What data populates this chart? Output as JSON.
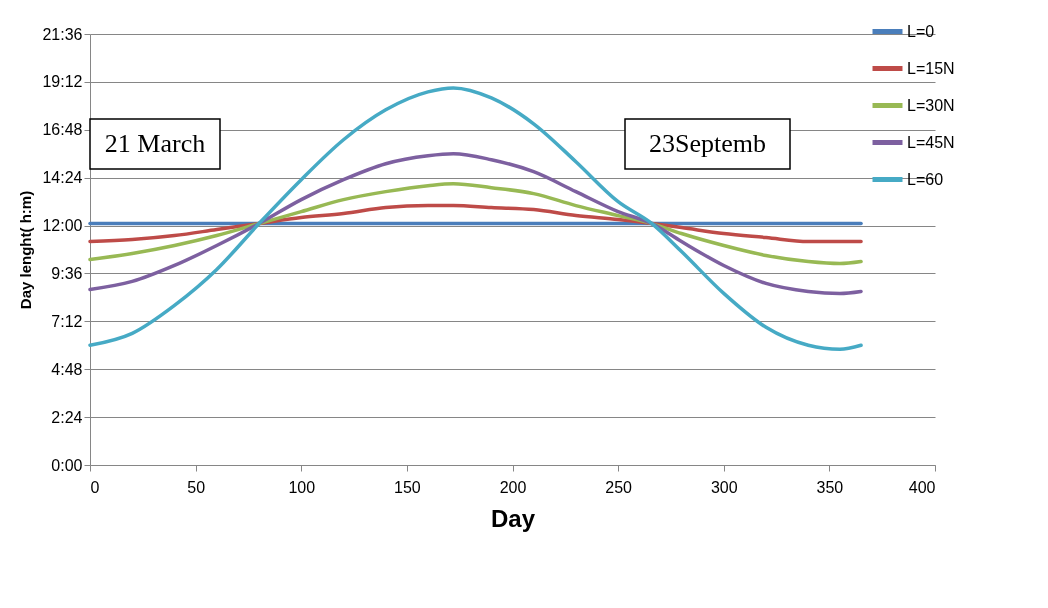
{
  "chart_data": {
    "type": "line",
    "xlabel": "Day",
    "ylabel": "Day lenght( h:m)",
    "xlim": [
      0,
      400
    ],
    "xticks": [
      0,
      50,
      100,
      150,
      200,
      250,
      300,
      350,
      400
    ],
    "ylim": [
      0,
      21.6
    ],
    "yticks": [
      {
        "value": 0,
        "label": "0:00"
      },
      {
        "value": 2.4,
        "label": "2:24"
      },
      {
        "value": 4.8,
        "label": "4:48"
      },
      {
        "value": 7.2,
        "label": "7:12"
      },
      {
        "value": 9.6,
        "label": "9:36"
      },
      {
        "value": 12,
        "label": "12:00"
      },
      {
        "value": 14.4,
        "label": "14:24"
      },
      {
        "value": 16.8,
        "label": "16:48"
      },
      {
        "value": 19.2,
        "label": "19:12"
      },
      {
        "value": 21.6,
        "label": "21:36"
      }
    ],
    "grid": "y",
    "legend": "top right",
    "marker": "none",
    "line_style": "solid",
    "annotations": [
      "21 March",
      "23Septemb"
    ],
    "x": [
      0,
      20,
      40,
      60,
      80,
      100,
      120,
      140,
      160,
      172,
      190,
      210,
      230,
      250,
      266,
      280,
      300,
      320,
      340,
      355,
      365
    ],
    "series": [
      {
        "name": "L=0",
        "color": "#4a7ebb",
        "x": [
          0,
          365
        ],
        "values": [
          12.1,
          12.1
        ]
      },
      {
        "name": "L=15N",
        "color": "#be4b48",
        "values": [
          11.2,
          11.3,
          11.5,
          11.8,
          12.1,
          12.4,
          12.6,
          12.9,
          13.0,
          13.0,
          12.9,
          12.8,
          12.5,
          12.3,
          12.1,
          11.9,
          11.6,
          11.4,
          11.2,
          11.2,
          11.2
        ]
      },
      {
        "name": "L=30N",
        "color": "#98b954",
        "values": [
          10.3,
          10.6,
          11.0,
          11.5,
          12.1,
          12.7,
          13.3,
          13.7,
          14.0,
          14.1,
          13.9,
          13.6,
          13.0,
          12.5,
          12.1,
          11.6,
          11.0,
          10.5,
          10.2,
          10.1,
          10.2
        ]
      },
      {
        "name": "L=45N",
        "color": "#7d60a0",
        "values": [
          8.8,
          9.2,
          10.0,
          11.0,
          12.1,
          13.3,
          14.3,
          15.1,
          15.5,
          15.6,
          15.3,
          14.7,
          13.7,
          12.7,
          12.1,
          11.2,
          10.0,
          9.1,
          8.7,
          8.6,
          8.7
        ]
      },
      {
        "name": "L=60",
        "color": "#46aac5",
        "values": [
          6.0,
          6.6,
          8.0,
          9.8,
          12.1,
          14.3,
          16.3,
          17.8,
          18.7,
          18.9,
          18.4,
          17.1,
          15.2,
          13.2,
          12.1,
          10.7,
          8.6,
          6.9,
          6.0,
          5.8,
          6.0
        ]
      }
    ]
  }
}
